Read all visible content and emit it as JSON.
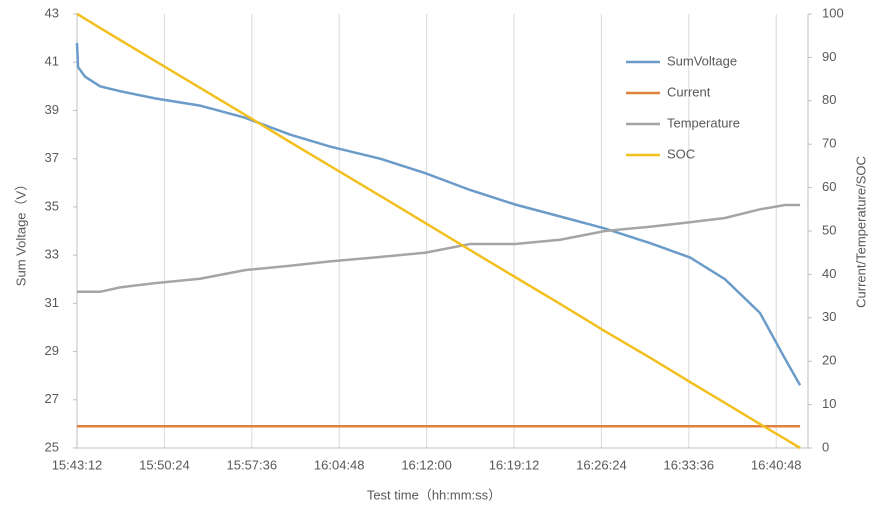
{
  "chart_data": {
    "type": "line",
    "xlabel": "Test time（hh:mm:ss）",
    "ylabel": "Sum Voltage（V）",
    "y2label": "Current/Temperature/SOC",
    "x": [
      "15:43:12",
      "15:43:17",
      "15:43:52",
      "15:45:06",
      "15:46:45",
      "15:49:38",
      "15:53:20",
      "15:57:02",
      "16:00:45",
      "16:04:03",
      "16:08:10",
      "16:11:52",
      "16:15:35",
      "16:19:17",
      "16:23:00",
      "16:26:42",
      "16:30:24",
      "16:33:42",
      "16:36:35",
      "16:39:28",
      "16:41:32",
      "16:42:46"
    ],
    "xlim": [
      "15:43:12",
      "16:43:25"
    ],
    "xticks": [
      "15:43:12",
      "15:50:24",
      "15:57:36",
      "16:04:48",
      "16:12:00",
      "16:19:12",
      "16:26:24",
      "16:33:36",
      "16:40:48"
    ],
    "ylim": [
      25,
      43
    ],
    "yticks": [
      25,
      27,
      29,
      31,
      33,
      35,
      37,
      39,
      41,
      43
    ],
    "y2lim": [
      0,
      100
    ],
    "y2ticks": [
      0,
      10,
      20,
      30,
      40,
      50,
      60,
      70,
      80,
      90,
      100
    ],
    "grid": true,
    "legend": "upper right",
    "series": [
      {
        "name": "SumVoltage",
        "color": "#6b9bc8",
        "values": [
          41.8,
          40.8,
          40.4,
          40.0,
          39.8,
          39.5,
          39.2,
          38.7,
          38.0,
          37.5,
          37.0,
          36.4,
          35.7,
          35.1,
          34.6,
          34.1,
          33.5,
          32.9,
          32.0,
          30.6,
          28.7,
          27.6
        ]
      },
      {
        "name": "Current",
        "color": "#e0823f",
        "axis": "y2",
        "values": [
          5,
          5,
          5,
          5,
          5,
          5,
          5,
          5,
          5,
          5,
          5,
          5,
          5,
          5,
          5,
          5,
          5,
          5,
          5,
          5,
          5,
          5
        ]
      },
      {
        "name": "Temperature",
        "color": "#a5a5a5",
        "axis": "y2",
        "values": [
          36,
          36,
          36,
          36,
          37,
          38,
          39,
          41,
          42,
          43,
          44,
          45,
          47,
          47,
          48,
          50,
          51,
          52,
          53,
          55,
          56,
          56
        ]
      },
      {
        "name": "SOC",
        "color": "#f2c01e",
        "axis": "y2",
        "values": [
          100,
          99.9,
          98.9,
          96.8,
          94.0,
          89.2,
          83.0,
          76.8,
          70.5,
          65.0,
          58.1,
          51.9,
          45.6,
          39.4,
          33.2,
          26.9,
          20.8,
          15.2,
          10.4,
          5.5,
          2.1,
          0
        ]
      }
    ]
  }
}
